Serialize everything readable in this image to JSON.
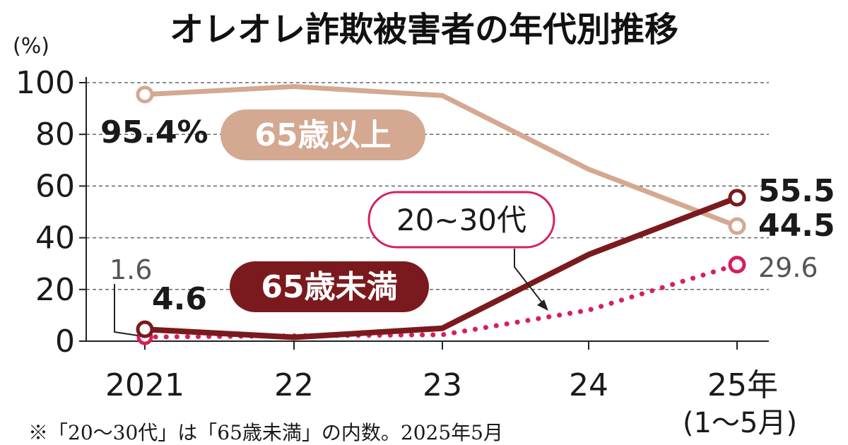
{
  "chart_data": {
    "type": "line",
    "title": "オレオレ詐欺被害者の年代別推移",
    "unit_label": "(%)",
    "categories": [
      "2021",
      "22",
      "23",
      "24",
      "25年"
    ],
    "category_sublabel": "(1～5月)",
    "ylim": [
      0,
      100
    ],
    "yticks": [
      "0",
      "20",
      "40",
      "60",
      "80",
      "100"
    ],
    "grid": "horizontal-dashed",
    "series": [
      {
        "name": "65歳以上",
        "values": [
          95.4,
          98.5,
          95.0,
          66.5,
          44.5
        ],
        "color": "#d4a891",
        "style": "solid",
        "start_label": "95.4%",
        "end_label": "44.5"
      },
      {
        "name": "65歳未満",
        "values": [
          4.6,
          1.5,
          5.0,
          33.5,
          55.5
        ],
        "color": "#7a1a1e",
        "style": "solid",
        "start_label": "4.6",
        "end_label": "55.5"
      },
      {
        "name": "20~30代",
        "values": [
          1.6,
          null,
          2.5,
          12.0,
          29.6
        ],
        "color": "#d6205a",
        "style": "dotted",
        "start_label": "1.6",
        "end_label": "29.6"
      }
    ],
    "note": "※「20～30代」は「65歳未満」の内数。2025年5月"
  }
}
